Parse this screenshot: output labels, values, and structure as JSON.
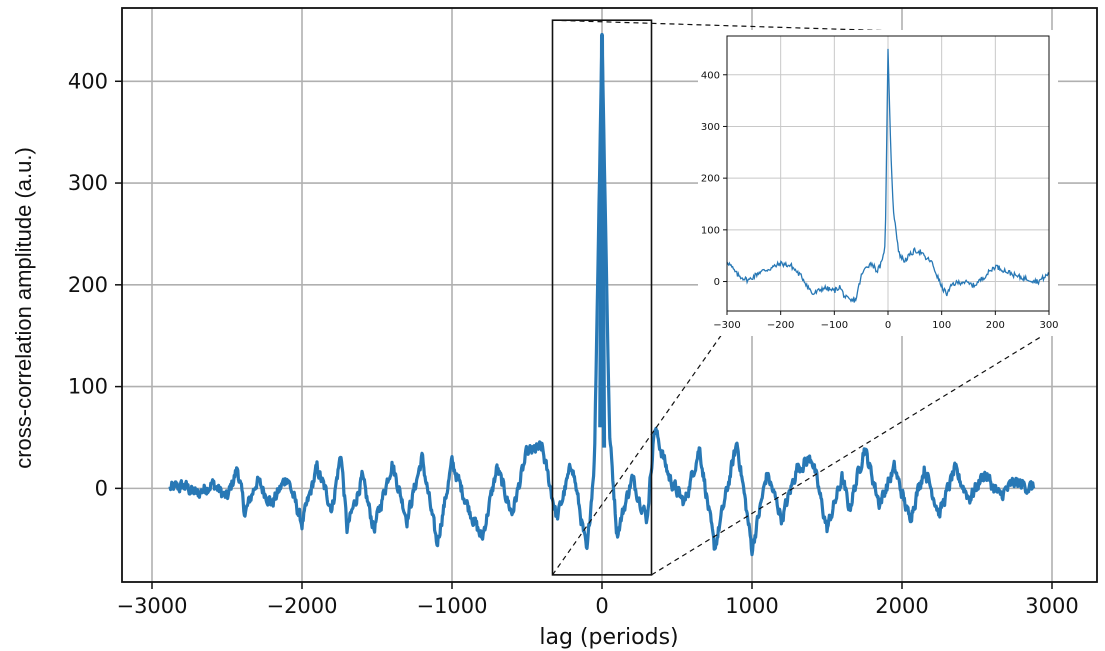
{
  "chart_data": [
    {
      "type": "line",
      "title": "",
      "xlabel": "lag (periods)",
      "ylabel": "cross-correlation amplitude (a.u.)",
      "xlim": [
        -3200,
        3300
      ],
      "ylim": [
        -92,
        472
      ],
      "x_ticks": [
        -3000,
        -2000,
        -1000,
        0,
        1000,
        2000,
        3000
      ],
      "x_tick_labels": [
        "−3000",
        "−2000",
        "−1000",
        "0",
        "1000",
        "2000",
        "3000"
      ],
      "y_ticks": [
        0,
        100,
        200,
        300,
        400
      ],
      "y_tick_labels": [
        "0",
        "100",
        "200",
        "300",
        "400"
      ],
      "grid": true,
      "line_color": "#2878b5",
      "x_range": [
        -2880,
        2880
      ],
      "series": [
        {
          "values_sampled": [
            [
              -2880,
              0
            ],
            [
              -2780,
              2
            ],
            [
              -2700,
              -6
            ],
            [
              -2600,
              5
            ],
            [
              -2500,
              -10
            ],
            [
              -2430,
              20
            ],
            [
              -2380,
              -25
            ],
            [
              -2300,
              8
            ],
            [
              -2200,
              -15
            ],
            [
              -2100,
              12
            ],
            [
              -2000,
              -35
            ],
            [
              -1900,
              20
            ],
            [
              -1800,
              -20
            ],
            [
              -1740,
              35
            ],
            [
              -1700,
              -40
            ],
            [
              -1600,
              10
            ],
            [
              -1520,
              -40
            ],
            [
              -1400,
              25
            ],
            [
              -1300,
              -30
            ],
            [
              -1200,
              30
            ],
            [
              -1100,
              -55
            ],
            [
              -1000,
              25
            ],
            [
              -900,
              -15
            ],
            [
              -800,
              -50
            ],
            [
              -700,
              20
            ],
            [
              -600,
              -25
            ],
            [
              -500,
              35
            ],
            [
              -400,
              40
            ],
            [
              -300,
              -30
            ],
            [
              -200,
              25
            ],
            [
              -100,
              -65
            ],
            [
              -50,
              30
            ],
            [
              0,
              446
            ],
            [
              50,
              55
            ],
            [
              100,
              -45
            ],
            [
              200,
              10
            ],
            [
              300,
              -30
            ],
            [
              350,
              60
            ],
            [
              450,
              10
            ],
            [
              550,
              -15
            ],
            [
              650,
              40
            ],
            [
              750,
              -60
            ],
            [
              850,
              10
            ],
            [
              900,
              45
            ],
            [
              1000,
              -60
            ],
            [
              1100,
              15
            ],
            [
              1200,
              -30
            ],
            [
              1300,
              20
            ],
            [
              1400,
              30
            ],
            [
              1500,
              -40
            ],
            [
              1600,
              10
            ],
            [
              1650,
              -20
            ],
            [
              1750,
              40
            ],
            [
              1850,
              -15
            ],
            [
              1950,
              20
            ],
            [
              2050,
              -30
            ],
            [
              2150,
              20
            ],
            [
              2250,
              -25
            ],
            [
              2350,
              18
            ],
            [
              2450,
              -10
            ],
            [
              2550,
              15
            ],
            [
              2650,
              -8
            ],
            [
              2750,
              6
            ],
            [
              2880,
              0
            ]
          ]
        }
      ],
      "annotations": [
        "zoom box from -330 to 330 lag, -85 to 460 amplitude"
      ]
    },
    {
      "type": "line",
      "title": "",
      "xlabel": "",
      "ylabel": "",
      "xlim": [
        -300,
        300
      ],
      "ylim": [
        -57,
        475
      ],
      "x_ticks": [
        -300,
        -200,
        -100,
        0,
        100,
        200,
        300
      ],
      "x_tick_labels": [
        "−300",
        "−200",
        "−100",
        "0",
        "100",
        "200",
        "300"
      ],
      "y_ticks": [
        0,
        100,
        200,
        300,
        400
      ],
      "y_tick_labels": [
        "0",
        "100",
        "200",
        "300",
        "400"
      ],
      "grid": true,
      "line_color": "#2878b5",
      "series": [
        {
          "values_sampled": [
            [
              -300,
              40
            ],
            [
              -280,
              12
            ],
            [
              -260,
              2
            ],
            [
              -240,
              18
            ],
            [
              -220,
              25
            ],
            [
              -200,
              35
            ],
            [
              -180,
              30
            ],
            [
              -160,
              8
            ],
            [
              -140,
              -25
            ],
            [
              -120,
              -12
            ],
            [
              -100,
              -18
            ],
            [
              -90,
              -10
            ],
            [
              -80,
              -30
            ],
            [
              -70,
              -38
            ],
            [
              -60,
              -35
            ],
            [
              -50,
              10
            ],
            [
              -40,
              30
            ],
            [
              -30,
              35
            ],
            [
              -20,
              20
            ],
            [
              -10,
              40
            ],
            [
              -5,
              80
            ],
            [
              0,
              450
            ],
            [
              5,
              260
            ],
            [
              10,
              140
            ],
            [
              15,
              100
            ],
            [
              20,
              55
            ],
            [
              30,
              40
            ],
            [
              40,
              50
            ],
            [
              50,
              60
            ],
            [
              60,
              58
            ],
            [
              70,
              45
            ],
            [
              80,
              40
            ],
            [
              90,
              15
            ],
            [
              100,
              -10
            ],
            [
              110,
              -25
            ],
            [
              120,
              -5
            ],
            [
              140,
              0
            ],
            [
              160,
              -8
            ],
            [
              180,
              10
            ],
            [
              200,
              30
            ],
            [
              220,
              20
            ],
            [
              240,
              10
            ],
            [
              260,
              5
            ],
            [
              280,
              0
            ],
            [
              300,
              15
            ]
          ]
        }
      ]
    }
  ]
}
